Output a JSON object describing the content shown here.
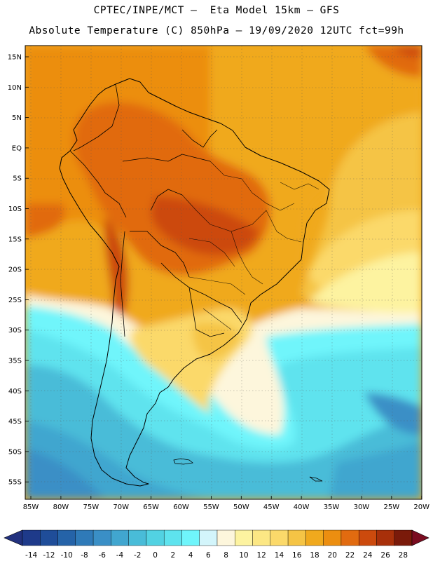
{
  "title_line1": "CPTEC/INPE/MCT –  Eta Model 15km – GFS",
  "title_line2": "Absolute Temperature (C) 850hPa – 19/09/2020 12UTC fct=99h",
  "lat_labels": [
    "15N",
    "10N",
    "5N",
    "EQ",
    "5S",
    "10S",
    "15S",
    "20S",
    "25S",
    "30S",
    "35S",
    "40S",
    "45S",
    "50S",
    "55S"
  ],
  "lon_labels": [
    "85W",
    "80W",
    "75W",
    "70W",
    "65W",
    "60W",
    "55W",
    "50W",
    "45W",
    "40W",
    "35W",
    "30W",
    "25W",
    "20W"
  ],
  "colorbar": {
    "labels": [
      "-14",
      "-12",
      "-10",
      "-8",
      "-6",
      "-4",
      "-2",
      "0",
      "2",
      "4",
      "6",
      "8",
      "10",
      "12",
      "14",
      "16",
      "18",
      "20",
      "22",
      "24",
      "26",
      "28"
    ],
    "colors": [
      "#1e3a8a",
      "#1f4d99",
      "#2563a8",
      "#2f7ab8",
      "#3a8fc6",
      "#41a6cf",
      "#49bcd8",
      "#52d2e2",
      "#5ee3ee",
      "#6ff5fb",
      "#d3f5fb",
      "#fdf6dc",
      "#fdf3a0",
      "#fce784",
      "#fbd96a",
      "#f5c445",
      "#f0a91d",
      "#ec8e10",
      "#e16b10",
      "#cc4a0d",
      "#a8300a",
      "#7a1a0a"
    ],
    "under_color": "#22317e",
    "over_color": "#7a0c20"
  },
  "temperature_colors": {
    "hot": "#e16b10",
    "warm": "#f0a91d",
    "mild": "#fbd96a",
    "cool": "#fdf3a0",
    "cold": "#49bcd8",
    "colder": "#3a8fc6"
  }
}
